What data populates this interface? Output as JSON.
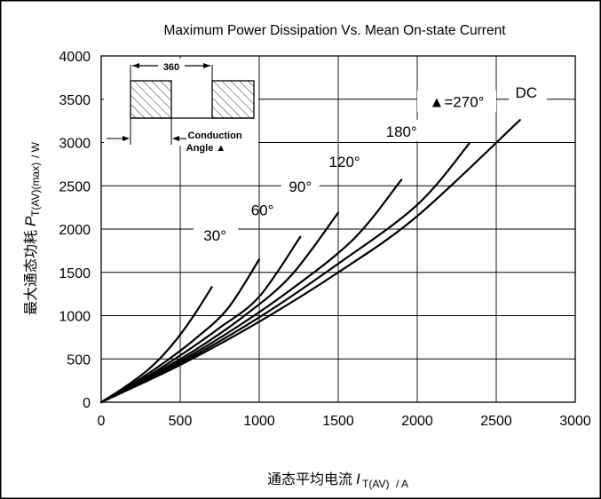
{
  "chart_data": {
    "type": "line",
    "title": "Maximum Power Dissipation Vs. Mean On-state Current",
    "xlabel": {
      "text": "通态平均电流",
      "symbol": "I",
      "subscript": "T(AV)",
      "unit": " / A"
    },
    "ylabel": {
      "text": "最大通态功耗",
      "symbol": "P",
      "subscript": "T(AV)(max)",
      "unit": " / W"
    },
    "xlim": [
      0,
      3000
    ],
    "ylim": [
      0,
      4000
    ],
    "xticks": [
      0,
      500,
      1000,
      1500,
      2000,
      2500,
      3000
    ],
    "yticks": [
      0,
      500,
      1000,
      1500,
      2000,
      2500,
      3000,
      3500,
      4000
    ],
    "grid": true,
    "legend": "none",
    "series": [
      {
        "name": "30°",
        "points": [
          [
            0,
            0
          ],
          [
            100,
            115
          ],
          [
            200,
            240
          ],
          [
            300,
            380
          ],
          [
            400,
            560
          ],
          [
            500,
            780
          ],
          [
            600,
            1040
          ],
          [
            700,
            1330
          ]
        ]
      },
      {
        "name": "60°",
        "points": [
          [
            0,
            0
          ],
          [
            200,
            215
          ],
          [
            400,
            460
          ],
          [
            600,
            740
          ],
          [
            800,
            1080
          ],
          [
            1000,
            1650
          ]
        ]
      },
      {
        "name": "90°",
        "points": [
          [
            0,
            0
          ],
          [
            250,
            250
          ],
          [
            500,
            540
          ],
          [
            750,
            860
          ],
          [
            1000,
            1220
          ],
          [
            1260,
            1910
          ]
        ]
      },
      {
        "name": "120°",
        "points": [
          [
            0,
            0
          ],
          [
            300,
            290
          ],
          [
            600,
            610
          ],
          [
            900,
            990
          ],
          [
            1200,
            1460
          ],
          [
            1500,
            2190
          ]
        ]
      },
      {
        "name": "180°",
        "points": [
          [
            0,
            0
          ],
          [
            400,
            370
          ],
          [
            800,
            800
          ],
          [
            1200,
            1300
          ],
          [
            1600,
            1890
          ],
          [
            1900,
            2570
          ]
        ]
      },
      {
        "name": "270°",
        "points": [
          [
            0,
            0
          ],
          [
            500,
            450
          ],
          [
            1000,
            980
          ],
          [
            1500,
            1600
          ],
          [
            2000,
            2280
          ],
          [
            2330,
            2990
          ]
        ]
      },
      {
        "name": "DC",
        "points": [
          [
            0,
            0
          ],
          [
            500,
            430
          ],
          [
            1000,
            930
          ],
          [
            1500,
            1500
          ],
          [
            2000,
            2150
          ],
          [
            2650,
            3260
          ]
        ]
      }
    ],
    "annotations": [
      {
        "text": "30°",
        "x": 720,
        "y": 1930,
        "gap_left": 585,
        "gap_right": 865
      },
      {
        "text": "60°",
        "x": 1020,
        "y": 2220
      },
      {
        "text": "90°",
        "x": 1260,
        "y": 2490,
        "gap_left": 1140,
        "gap_right": 1380
      },
      {
        "text": "120°",
        "x": 1540,
        "y": 2780
      },
      {
        "text": "180°",
        "x": 1900,
        "y": 3130,
        "gap_left": 1730,
        "gap_right": 2080
      },
      {
        "text": "▲=270°",
        "x": 2250,
        "y": 3470,
        "gap_left": 2000,
        "gap_right": 2500
      },
      {
        "text": "DC",
        "x": 2690,
        "y": 3580,
        "gap_left": 2580,
        "gap_right": 2820
      }
    ],
    "inset": {
      "width_label": "360",
      "caption_line1": "Conduction",
      "caption_line2": "Angle ▲"
    }
  }
}
